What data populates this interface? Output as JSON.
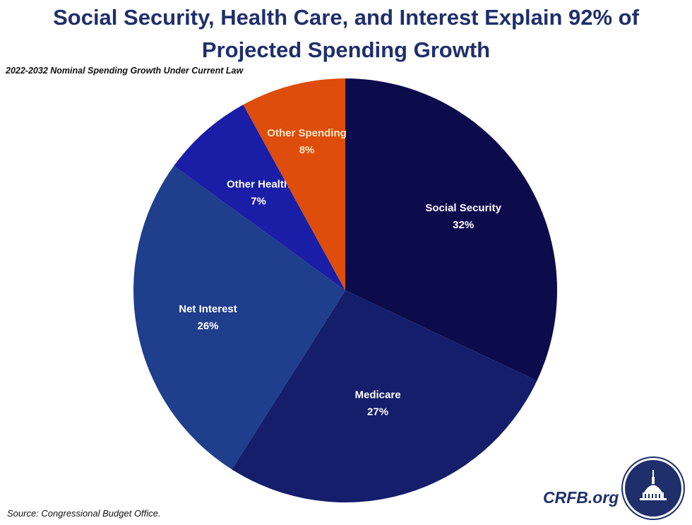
{
  "title_line1": "Social Security, Health Care, and Interest Explain 92% of",
  "title_line2": "Projected Spending Growth",
  "source": "Source: Congressional Budget Office.",
  "brand": "CRFB.org",
  "colors": {
    "title": "#1f2f6b",
    "social_security": "#0c0c4c",
    "medicare": "#141e6b",
    "net_interest": "#1f3e8c",
    "other_health": "#1a1da6",
    "other_spending": "#de4d0b",
    "slice_text": "#ffffff",
    "other_spending_text": "#f9e6c8"
  },
  "chart_data": {
    "type": "pie",
    "title": "Social Security, Health Care, and Interest Explain 92% of Projected Spending Growth",
    "subtitle": "2022-2032 Nominal Spending Growth Under Current Law",
    "unit": "%",
    "start": "12 o'clock, clockwise",
    "slices": [
      {
        "label": "Social Security",
        "value": 32,
        "value_label": "32%"
      },
      {
        "label": "Medicare",
        "value": 27,
        "value_label": "27%"
      },
      {
        "label": "Net Interest",
        "value": 26,
        "value_label": "26%"
      },
      {
        "label": "Other Health",
        "value": 7,
        "value_label": "7%"
      },
      {
        "label": "Other Spending",
        "value": 8,
        "value_label": "8%"
      }
    ]
  }
}
